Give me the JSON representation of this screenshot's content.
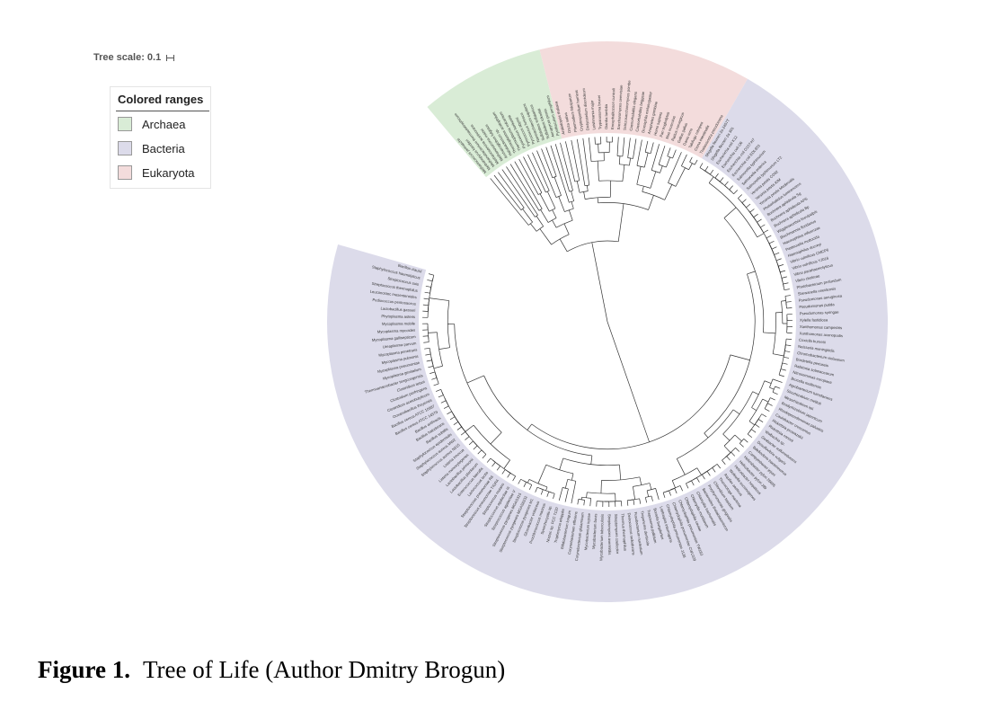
{
  "tree_scale": {
    "label": "Tree scale: 0.1"
  },
  "legend": {
    "title": "Colored ranges",
    "items": [
      {
        "label": "Archaea",
        "color": "#d9ecd6"
      },
      {
        "label": "Bacteria",
        "color": "#dcdbea"
      },
      {
        "label": "Eukaryota",
        "color": "#f3dcdc"
      }
    ]
  },
  "ring_ranges": [
    {
      "group": "Archaea",
      "start_deg": -130,
      "end_deg": -104
    },
    {
      "group": "Eukaryota",
      "start_deg": -104,
      "end_deg": -60
    },
    {
      "group": "Bacteria",
      "start_deg": -60,
      "end_deg": 196
    }
  ],
  "leaf_labels": {
    "Bacteria": [
      "Shigella flexneri 2a 2457T",
      "Shigella flexneri 2a 301",
      "Escherichia coli K12",
      "Escherichia coli O6",
      "Escherichia coli O157:H7",
      "Escherichia coli EDL933",
      "Salmonella typhimurium",
      "Salmonella enterica",
      "Salmonella typhimurium LT2",
      "Yersinia pestis CO92",
      "Yersinia pestis KIM",
      "Yersinia pestis Medievalis",
      "Photorhabdus luminescens",
      "Buchnera aphidicola Sg",
      "Buchnera aphidicola APS",
      "Buchnera aphidicola Bp",
      "Wigglesworthia brevipalpis",
      "Blochmannia floridanus",
      "Haemophilus influenzae",
      "Pasteurella multocida",
      "Haemophilus ducreyi",
      "Vibrio vulnificus CMCP6",
      "Vibrio vulnificus YJ016",
      "Vibrio parahaemolyticus",
      "Vibrio cholerae",
      "Photobacterium profundum",
      "Shewanella oneidensis",
      "Pseudomonas aeruginosa",
      "Pseudomonas putida",
      "Pseudomonas syringae",
      "Xylella fastidiosa",
      "Xanthomonas campestris",
      "Xanthomonas axonopodis",
      "Coxiella burnetii",
      "Neisseria meningitidis",
      "Chromobacterium violaceum",
      "Bordetella pertussis",
      "Ralstonia solanacearum",
      "Nitrosomonas europaea",
      "Brucella melitensis",
      "Agrobacterium tumefaciens",
      "Sinorhizobium meliloti",
      "Mesorhizobium loti",
      "Bradyrhizobium japonicum",
      "Rhodopseudomonas palustris",
      "Caulobacter crescentus",
      "Rickettsia prowazekii",
      "Rickettsia conorii",
      "Wolbachia sp.",
      "Geobacter sulfurreducens",
      "Desulfovibrio vulgaris",
      "Bdellovibrio bacteriovorus",
      "Campylobacter jejuni",
      "Helicobacter pylori 26695",
      "Helicobacter pylori J99",
      "Helicobacter hepaticus",
      "Wolinella succinogenes",
      "Aquifex aeolicus",
      "Thermotoga maritima",
      "Chlorobium tepidum",
      "Porphyromonas gingivalis",
      "Bacteroides thetaiotaomicron",
      "Chlamydia trachomatis",
      "Chlamydia muridarum",
      "Chlamydophila caviae",
      "Chlamydophila pneumoniae TW183",
      "Chlamydophila pneumoniae CWL029",
      "Chlamydophila pneumoniae J138",
      "Leptospira interrogans",
      "Borrelia burgdorferi",
      "Treponema pallidum",
      "Treponema denticola",
      "Fusobacterium nucleatum",
      "Deinococcus radiodurans",
      "Thermus thermophilus",
      "Streptomyces coelicolor",
      "Streptomyces avermitilis",
      "Mycobacterium tuberculosis",
      "Mycobacterium bovis",
      "Mycobacterium leprae",
      "Corynebacterium glutamicum",
      "Corynebacterium efficiens",
      "Bifidobacterium longum",
      "Tropheryma whipplei",
      "Nostoc sp. PCC 7120",
      "Synechocystis sp.",
      "Prochlorococcus marinus",
      "Gloeobacter violaceus",
      "Streptococcus pyogenes M1",
      "Streptococcus pyogenes MGAS8232",
      "Streptococcus pyogenes MGAS315",
      "Streptococcus agalactiae V",
      "Streptococcus agalactiae III",
      "Streptococcus mutans",
      "Streptococcus pneumoniae TIGR4",
      "Streptococcus pneumoniae R6",
      "Lactococcus lactis",
      "Enterococcus faecalis",
      "Lactobacillus plantarum",
      "Lactobacillus johnsonii",
      "Listeria monocytogenes",
      "Listeria innocua",
      "Staphylococcus aureus N315",
      "Staphylococcus aureus MW2",
      "Staphylococcus epidermidis",
      "Bacillus subtilis",
      "Bacillus halodurans",
      "Bacillus anthracis",
      "Bacillus cereus ATCC 14579",
      "Bacillus cereus ATCC 10987",
      "Oceanobacillus iheyensis",
      "Clostridium acetobutylicum",
      "Clostridium perfringens",
      "Clostridium tetani",
      "Thermoanaerobacter tengcongensis",
      "Mycoplasma genitalium",
      "Mycoplasma pneumoniae",
      "Mycoplasma pulmonis",
      "Mycoplasma penetrans",
      "Ureaplasma parvum",
      "Mycoplasma gallisepticum",
      "Mycoplasma mycoides",
      "Mycoplasma mobile",
      "Phytoplasma asteris",
      "Lactobacillus gasseri",
      "Pediococcus pentosaceus",
      "Leuconostoc mesenteroides",
      "Streptococcus thermophilus",
      "Streptococcus suis",
      "Staphylococcus haemolyticus",
      "Bacillus clausii"
    ],
    "Archaea": [
      "Methanococcus jannaschii",
      "Methanopyrus kandleri",
      "Methanobacterium thermautotrophicum",
      "Methanosarcina acetivorans",
      "Methanosarcina mazei",
      "Archaeoglobus fulgidus",
      "Halobacterium sp.",
      "Thermoplasma acidophilum",
      "Thermoplasma volcanium",
      "Pyrococcus horikoshii",
      "Pyrococcus abyssi",
      "Pyrococcus furiosus",
      "Nanoarchaeum equitans",
      "Sulfolobus solfataricus",
      "Sulfolobus tokodaii",
      "Aeropyrum pernix",
      "Pyrobaculum aerophilum"
    ],
    "Eukaryota": [
      "Arabidopsis thaliana",
      "Oryza sativa",
      "Plasmodium falciparum",
      "Cryptosporidium hominis",
      "Dictyostelium discoideum",
      "Leishmania major",
      "Trypanosoma brucei",
      "Giardia lamblia",
      "Encephalitozoon cuniculi",
      "Saccharomyces cerevisiae",
      "Schizosaccharomyces pombe",
      "Caenorhabditis elegans",
      "Caenorhabditis briggsae",
      "Drosophila melanogaster",
      "Anopheles gambiae",
      "Homo sapiens",
      "Pan troglodytes",
      "Mus musculus",
      "Rattus norvegicus",
      "Gallus gallus",
      "Danio rerio",
      "Takifugu rubripes",
      "Ciona intestinalis",
      "Thalassiosira pseudonana"
    ]
  },
  "caption": {
    "label": "Figure 1.",
    "text": "Tree of Life (Author Dmitry Brogun)"
  }
}
